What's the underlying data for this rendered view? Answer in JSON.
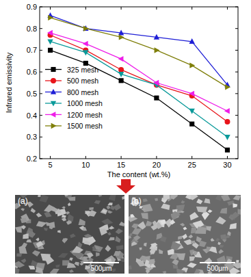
{
  "chart_data": {
    "type": "line",
    "x_label": "The content (wt.%)",
    "y_label": "Infrared emissivity",
    "x": [
      5,
      10,
      15,
      20,
      25,
      30
    ],
    "xlim": [
      3.5,
      31.5
    ],
    "xticks": [
      5,
      10,
      15,
      20,
      25,
      30
    ],
    "ylim": [
      0.2,
      0.9
    ],
    "yticks": [
      0.2,
      0.3,
      0.4,
      0.5,
      0.6,
      0.7,
      0.8,
      0.9
    ],
    "legend": "left",
    "grid": false,
    "series": [
      {
        "name": "325 mesh",
        "color": "#000000",
        "marker": "square",
        "values": [
          0.7,
          0.64,
          0.56,
          0.48,
          0.36,
          0.24
        ]
      },
      {
        "name": "500 mesh",
        "color": "#e8141a",
        "marker": "circle",
        "values": [
          0.77,
          0.7,
          0.61,
          0.54,
          0.49,
          0.37
        ]
      },
      {
        "name": "800 mesh",
        "color": "#1f1fd6",
        "marker": "triangle-up",
        "values": [
          0.86,
          0.8,
          0.78,
          0.76,
          0.74,
          0.54
        ]
      },
      {
        "name": "1000 mesh",
        "color": "#0a9a9a",
        "marker": "triangle-down",
        "values": [
          0.74,
          0.69,
          0.59,
          0.54,
          0.42,
          0.3
        ]
      },
      {
        "name": "1200 mesh",
        "color": "#ee1ee8",
        "marker": "triangle-left",
        "values": [
          0.78,
          0.73,
          0.66,
          0.55,
          0.5,
          0.42
        ]
      },
      {
        "name": "1500 mesh",
        "color": "#7f7f0a",
        "marker": "triangle-right",
        "values": [
          0.85,
          0.8,
          0.76,
          0.7,
          0.63,
          0.53
        ]
      }
    ]
  },
  "panels": [
    {
      "label": "(a)",
      "scale_bar": "500μm"
    },
    {
      "label": "(b)",
      "scale_bar": "500μm"
    }
  ]
}
